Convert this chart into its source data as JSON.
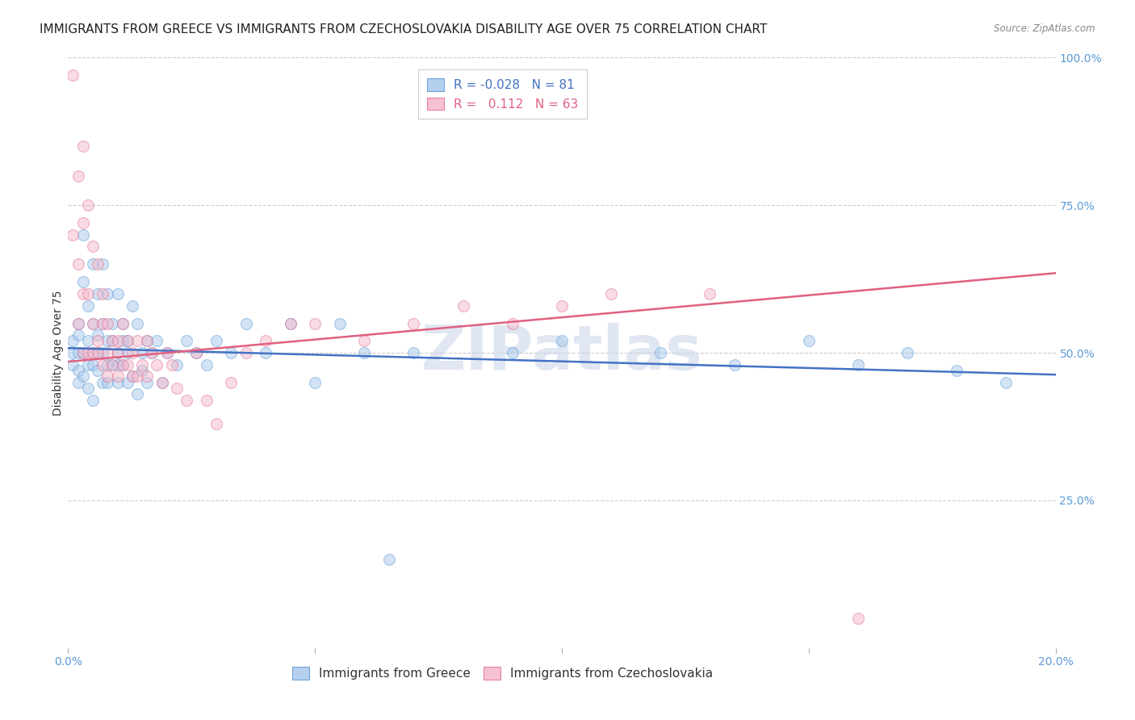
{
  "title": "IMMIGRANTS FROM GREECE VS IMMIGRANTS FROM CZECHOSLOVAKIA DISABILITY AGE OVER 75 CORRELATION CHART",
  "source": "Source: ZipAtlas.com",
  "ylabel": "Disability Age Over 75",
  "xlim": [
    0.0,
    0.2
  ],
  "ylim": [
    0.0,
    1.0
  ],
  "xticks": [
    0.0,
    0.05,
    0.1,
    0.15,
    0.2
  ],
  "xtick_labels": [
    "0.0%",
    "",
    "",
    "",
    "20.0%"
  ],
  "ytick_labels_right": [
    "100.0%",
    "75.0%",
    "50.0%",
    "25.0%"
  ],
  "yticks_right": [
    1.0,
    0.75,
    0.5,
    0.25
  ],
  "greece_color": "#a8c8ed",
  "czech_color": "#f5b8cb",
  "greece_edge": "#5b9bd5",
  "czech_edge": "#e07090",
  "trend_blue": "#4472c4",
  "trend_pink": "#e06080",
  "legend_label_greece": "Immigrants from Greece",
  "legend_label_czech": "Immigrants from Czechoslovakia",
  "R_greece": -0.028,
  "N_greece": 81,
  "R_czech": 0.112,
  "N_czech": 63,
  "greece_x": [
    0.001,
    0.001,
    0.001,
    0.002,
    0.002,
    0.002,
    0.002,
    0.002,
    0.003,
    0.003,
    0.003,
    0.003,
    0.004,
    0.004,
    0.004,
    0.004,
    0.005,
    0.005,
    0.005,
    0.005,
    0.005,
    0.006,
    0.006,
    0.006,
    0.006,
    0.007,
    0.007,
    0.007,
    0.007,
    0.008,
    0.008,
    0.008,
    0.008,
    0.009,
    0.009,
    0.009,
    0.01,
    0.01,
    0.01,
    0.01,
    0.011,
    0.011,
    0.011,
    0.012,
    0.012,
    0.012,
    0.013,
    0.013,
    0.014,
    0.014,
    0.015,
    0.015,
    0.016,
    0.016,
    0.017,
    0.018,
    0.019,
    0.02,
    0.022,
    0.024,
    0.026,
    0.028,
    0.03,
    0.033,
    0.036,
    0.04,
    0.045,
    0.05,
    0.055,
    0.06,
    0.065,
    0.07,
    0.09,
    0.1,
    0.12,
    0.135,
    0.15,
    0.16,
    0.17,
    0.18,
    0.19
  ],
  "greece_y": [
    0.5,
    0.52,
    0.48,
    0.55,
    0.45,
    0.5,
    0.53,
    0.47,
    0.62,
    0.7,
    0.46,
    0.5,
    0.58,
    0.44,
    0.52,
    0.48,
    0.65,
    0.42,
    0.55,
    0.5,
    0.48,
    0.6,
    0.5,
    0.47,
    0.53,
    0.65,
    0.45,
    0.55,
    0.5,
    0.6,
    0.48,
    0.52,
    0.45,
    0.55,
    0.48,
    0.52,
    0.6,
    0.45,
    0.5,
    0.48,
    0.52,
    0.48,
    0.55,
    0.5,
    0.45,
    0.52,
    0.58,
    0.46,
    0.55,
    0.43,
    0.5,
    0.47,
    0.52,
    0.45,
    0.5,
    0.52,
    0.45,
    0.5,
    0.48,
    0.52,
    0.5,
    0.48,
    0.52,
    0.5,
    0.55,
    0.5,
    0.55,
    0.45,
    0.55,
    0.5,
    0.15,
    0.5,
    0.5,
    0.52,
    0.5,
    0.48,
    0.52,
    0.48,
    0.5,
    0.47,
    0.45
  ],
  "czech_x": [
    0.001,
    0.001,
    0.002,
    0.002,
    0.002,
    0.003,
    0.003,
    0.003,
    0.003,
    0.004,
    0.004,
    0.004,
    0.005,
    0.005,
    0.005,
    0.006,
    0.006,
    0.006,
    0.007,
    0.007,
    0.007,
    0.008,
    0.008,
    0.008,
    0.009,
    0.009,
    0.01,
    0.01,
    0.01,
    0.011,
    0.011,
    0.012,
    0.012,
    0.013,
    0.013,
    0.014,
    0.014,
    0.015,
    0.016,
    0.016,
    0.017,
    0.018,
    0.019,
    0.02,
    0.021,
    0.022,
    0.024,
    0.026,
    0.028,
    0.03,
    0.033,
    0.036,
    0.04,
    0.045,
    0.05,
    0.06,
    0.07,
    0.08,
    0.09,
    0.1,
    0.11,
    0.13,
    0.16
  ],
  "czech_y": [
    0.97,
    0.7,
    0.8,
    0.55,
    0.65,
    0.85,
    0.6,
    0.5,
    0.72,
    0.75,
    0.5,
    0.6,
    0.68,
    0.55,
    0.5,
    0.65,
    0.52,
    0.5,
    0.6,
    0.55,
    0.48,
    0.55,
    0.5,
    0.46,
    0.52,
    0.48,
    0.5,
    0.52,
    0.46,
    0.55,
    0.48,
    0.52,
    0.48,
    0.5,
    0.46,
    0.52,
    0.46,
    0.48,
    0.52,
    0.46,
    0.5,
    0.48,
    0.45,
    0.5,
    0.48,
    0.44,
    0.42,
    0.5,
    0.42,
    0.38,
    0.45,
    0.5,
    0.52,
    0.55,
    0.55,
    0.52,
    0.55,
    0.58,
    0.55,
    0.58,
    0.6,
    0.6,
    0.05
  ],
  "background_color": "#ffffff",
  "grid_color": "#cccccc",
  "watermark_text": "ZIPatlas",
  "watermark_color": "#c8d4e8",
  "title_fontsize": 11,
  "axis_label_fontsize": 10,
  "tick_fontsize": 10,
  "legend_fontsize": 11,
  "marker_size": 100,
  "marker_alpha": 0.5,
  "linewidth": 1.8
}
